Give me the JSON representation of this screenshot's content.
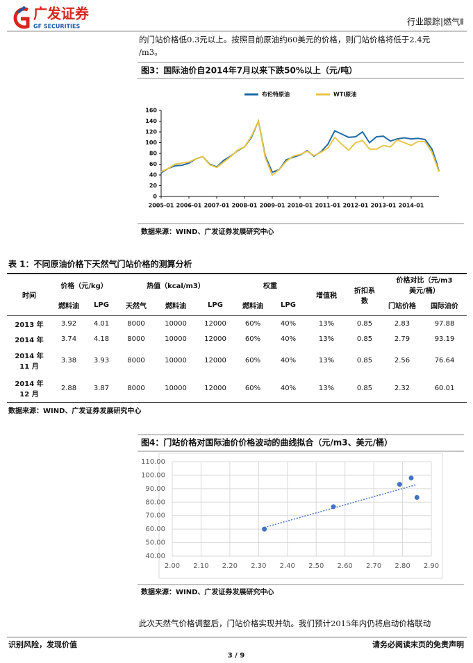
{
  "header": {
    "logo_cn": "广发证券",
    "logo_en": "GF SECURITIES",
    "section": "行业跟踪|燃气Ⅱ"
  },
  "body": {
    "lines": [
      "的门站价格低0.3元以上。按照目前原油约60美元的价格，则门站价格将低于2.4元",
      "/m3。"
    ],
    "closing": "此次天然气价格调整后，门站价格实现并轨。我们预计2015年内仍将启动价格联动"
  },
  "chart_data": [
    {
      "type": "line",
      "title": "图3：国际油价自2014年7月以来下跌50%以上（元/吨）",
      "source": "数据来源：WIND、广发证券发展研究中心",
      "x": [
        "2005-01",
        "2005-04",
        "2005-07",
        "2005-10",
        "2006-01",
        "2006-04",
        "2006-07",
        "2006-10",
        "2007-01",
        "2007-04",
        "2007-07",
        "2007-10",
        "2008-01",
        "2008-04",
        "2008-07",
        "2008-10",
        "2009-01",
        "2009-04",
        "2009-07",
        "2009-10",
        "2010-01",
        "2010-04",
        "2010-07",
        "2010-10",
        "2011-01",
        "2011-04",
        "2011-07",
        "2011-10",
        "2012-01",
        "2012-04",
        "2012-07",
        "2012-10",
        "2013-01",
        "2013-04",
        "2013-07",
        "2013-10",
        "2014-01",
        "2014-04",
        "2014-07",
        "2014-10",
        "2014-12",
        "2015-01"
      ],
      "series": [
        {
          "name": "布伦特原油",
          "color": "#1f6aa5",
          "values": [
            44,
            52,
            57,
            58,
            62,
            70,
            74,
            60,
            55,
            67,
            75,
            85,
            92,
            110,
            140,
            75,
            45,
            50,
            68,
            73,
            77,
            85,
            75,
            83,
            97,
            122,
            116,
            110,
            111,
            120,
            100,
            111,
            112,
            103,
            107,
            109,
            107,
            108,
            106,
            88,
            62,
            47
          ]
        },
        {
          "name": "WTI原油",
          "color": "#e8c547",
          "values": [
            46,
            52,
            60,
            62,
            64,
            70,
            74,
            59,
            54,
            64,
            74,
            86,
            92,
            112,
            140,
            72,
            40,
            50,
            65,
            75,
            78,
            84,
            76,
            82,
            90,
            110,
            97,
            86,
            100,
            104,
            88,
            88,
            95,
            92,
            105,
            100,
            95,
            102,
            102,
            82,
            58,
            46
          ]
        }
      ],
      "xlim": [
        "2005-01",
        "2015-01"
      ],
      "xticks": [
        "2005-01",
        "2006-01",
        "2007-01",
        "2008-01",
        "2009-01",
        "2010-01",
        "2011-01",
        "2012-01",
        "2013-01",
        "2014-01"
      ],
      "ylim": [
        0,
        160
      ],
      "yticks": [
        0,
        20,
        40,
        60,
        80,
        100,
        120,
        140,
        160
      ],
      "grid": false,
      "legend": "top"
    },
    {
      "type": "scatter",
      "title": "图4：门站价格对国际油价价格波动的曲线拟合（元/m3、美元/桶）",
      "source": "数据来源：WIND、广发证券发展研究中心",
      "x": [
        2.32,
        2.56,
        2.79,
        2.83,
        2.85
      ],
      "values": [
        60.01,
        76.64,
        93.19,
        97.88,
        83.5
      ],
      "color": "#4472c4",
      "trendline": true,
      "xlim": [
        2.0,
        2.9
      ],
      "xticks": [
        {
          "value": 2.0,
          "label": "2.00"
        },
        {
          "value": 2.1,
          "label": "2.10"
        },
        {
          "value": 2.2,
          "label": "2.20"
        },
        {
          "value": 2.3,
          "label": "2.30"
        },
        {
          "value": 2.4,
          "label": "2.40"
        },
        {
          "value": 2.5,
          "label": "2.50"
        },
        {
          "value": 2.6,
          "label": "2.60"
        },
        {
          "value": 2.7,
          "label": "2.70"
        },
        {
          "value": 2.8,
          "label": "2.80"
        },
        {
          "value": 2.9,
          "label": "2.90"
        }
      ],
      "ylim": [
        40,
        110
      ],
      "yticks": [
        {
          "value": 40,
          "label": "40.00"
        },
        {
          "value": 50,
          "label": "50.00"
        },
        {
          "value": 60,
          "label": "60.00"
        },
        {
          "value": 70,
          "label": "70.00"
        },
        {
          "value": 80,
          "label": "80.00"
        },
        {
          "value": 90,
          "label": "90.00"
        },
        {
          "value": 100,
          "label": "100.00"
        },
        {
          "value": 110,
          "label": "110.00"
        }
      ],
      "grid": true
    }
  ],
  "table": {
    "title": "表 1：不同原油价格下天然气门站价格的测算分析",
    "header_top": [
      "时间",
      "价格（元/kg）",
      "热值（kcal/m3）",
      "权重",
      "增值税",
      "折扣系数",
      "价格对比（元/m3 美元/桶）"
    ],
    "header_sub": [
      "燃料油",
      "LPG",
      "天然气",
      "燃料油",
      "LPG",
      "燃料油",
      "LPG",
      "门站价格",
      "国际油价"
    ],
    "rows": [
      [
        "2013 年",
        "3.92",
        "4.01",
        "8000",
        "10000",
        "12000",
        "60%",
        "40%",
        "13%",
        "0.85",
        "2.83",
        "97.88"
      ],
      [
        "2014 年",
        "3.74",
        "4.18",
        "8000",
        "10000",
        "12000",
        "60%",
        "40%",
        "13%",
        "0.85",
        "2.79",
        "93.19"
      ],
      [
        "2014 年 11 月",
        "3.38",
        "3.93",
        "8000",
        "10000",
        "12000",
        "60%",
        "40%",
        "13%",
        "0.85",
        "2.56",
        "76.64"
      ],
      [
        "2014 年 12 月",
        "2.88",
        "3.87",
        "8000",
        "10000",
        "12000",
        "60%",
        "40%",
        "13%",
        "0.85",
        "2.32",
        "60.01"
      ]
    ],
    "source": "数据来源：WIND、广发证券发展研究中心"
  },
  "footer": {
    "left": "识别风险，发现价值",
    "right": "请务必阅读末页的免责声明",
    "page": "3 / 9"
  }
}
